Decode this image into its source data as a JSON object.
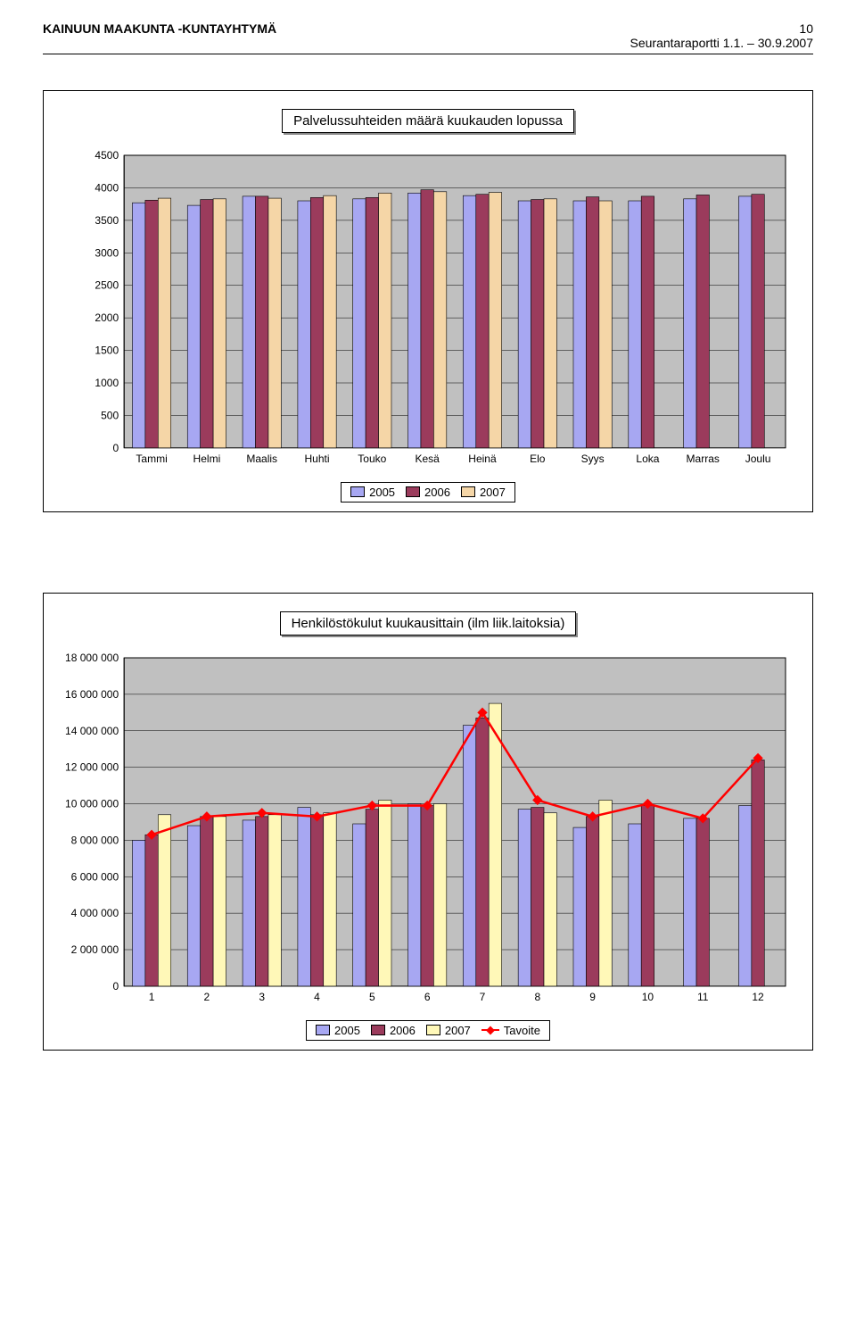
{
  "header": {
    "left": "KAINUUN MAAKUNTA -KUNTAYHTYMÄ",
    "page_no": "10",
    "report_line": "Seurantaraportti 1.1. – 30.9.2007"
  },
  "chart1": {
    "type": "bar",
    "title": "Palvelussuhteiden määrä kuukauden lopussa",
    "categories": [
      "Tammi",
      "Helmi",
      "Maalis",
      "Huhti",
      "Touko",
      "Kesä",
      "Heinä",
      "Elo",
      "Syys",
      "Loka",
      "Marras",
      "Joulu"
    ],
    "series": [
      {
        "name": "2005",
        "color": "#a7a7f2",
        "values": [
          3770,
          3730,
          3870,
          3800,
          3830,
          3920,
          3880,
          3800,
          3800,
          3800,
          3830,
          3870
        ]
      },
      {
        "name": "2006",
        "color": "#9b3b5c",
        "values": [
          3810,
          3820,
          3870,
          3850,
          3850,
          3970,
          3900,
          3820,
          3860,
          3870,
          3890,
          3900
        ]
      },
      {
        "name": "2007",
        "color": "#f5d6a7",
        "values": [
          3840,
          3830,
          3840,
          3880,
          3920,
          3940,
          3930,
          3830,
          3800,
          null,
          null,
          null
        ]
      }
    ],
    "ytick_step": 500,
    "ylim": [
      0,
      4500
    ],
    "background_color": "#c0c0c0",
    "grid_color": "#000000",
    "axis_color": "#000000",
    "label_fontsize": 12,
    "title_fontsize": 15
  },
  "chart2": {
    "type": "bar+line",
    "title": "Henkilöstökulut kuukausittain (ilm liik.laitoksia)",
    "categories": [
      "1",
      "2",
      "3",
      "4",
      "5",
      "6",
      "7",
      "8",
      "9",
      "10",
      "11",
      "12"
    ],
    "series": [
      {
        "name": "2005",
        "color": "#a7a7f2",
        "values": [
          8000000,
          8800000,
          9100000,
          9800000,
          8900000,
          10000000,
          14300000,
          9700000,
          8700000,
          8900000,
          9200000,
          9900000
        ]
      },
      {
        "name": "2006",
        "color": "#9b3b5c",
        "values": [
          8300000,
          9300000,
          9300000,
          9400000,
          9700000,
          9900000,
          14700000,
          9800000,
          9300000,
          9900000,
          9200000,
          12400000
        ]
      },
      {
        "name": "2007",
        "color": "#fff8b8",
        "values": [
          9400000,
          9300000,
          9400000,
          9500000,
          10200000,
          10000000,
          15500000,
          9500000,
          10200000,
          null,
          null,
          null
        ]
      }
    ],
    "line": {
      "name": "Tavoite",
      "color": "#ff0000",
      "values": [
        8300000,
        9300000,
        9500000,
        9300000,
        9900000,
        9900000,
        15000000,
        10200000,
        9300000,
        10000000,
        9200000,
        12500000
      ]
    },
    "ytick_step": 2000000,
    "ylim": [
      0,
      18000000
    ],
    "background_color": "#c0c0c0",
    "grid_color": "#000000",
    "axis_color": "#000000",
    "label_fontsize": 12,
    "title_fontsize": 15
  },
  "legend1": [
    "2005",
    "2006",
    "2007"
  ],
  "legend2": [
    "2005",
    "2006",
    "2007",
    "Tavoite"
  ]
}
